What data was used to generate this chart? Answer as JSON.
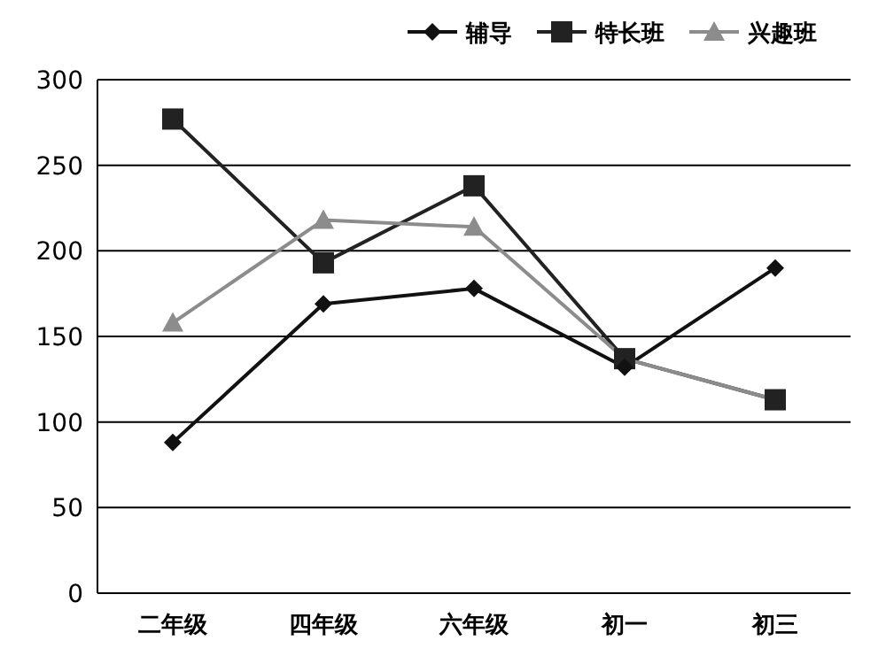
{
  "chart_data": {
    "type": "line",
    "categories": [
      "二年级",
      "四年级",
      "六年级",
      "初一",
      "初三"
    ],
    "series": [
      {
        "name": "辅导",
        "color": "#111111",
        "marker": "diamond",
        "values": [
          88,
          169,
          178,
          132,
          190
        ]
      },
      {
        "name": "特长班",
        "color": "#222222",
        "marker": "square",
        "values": [
          277,
          193,
          238,
          137,
          113
        ]
      },
      {
        "name": "兴趣班",
        "color": "#8c8c8c",
        "marker": "triangle",
        "values": [
          158,
          218,
          214,
          137,
          113
        ]
      }
    ],
    "ylim": [
      0,
      300
    ],
    "yticks": [
      0,
      50,
      100,
      150,
      200,
      250,
      300
    ],
    "grid": "y",
    "legend": "top right"
  }
}
